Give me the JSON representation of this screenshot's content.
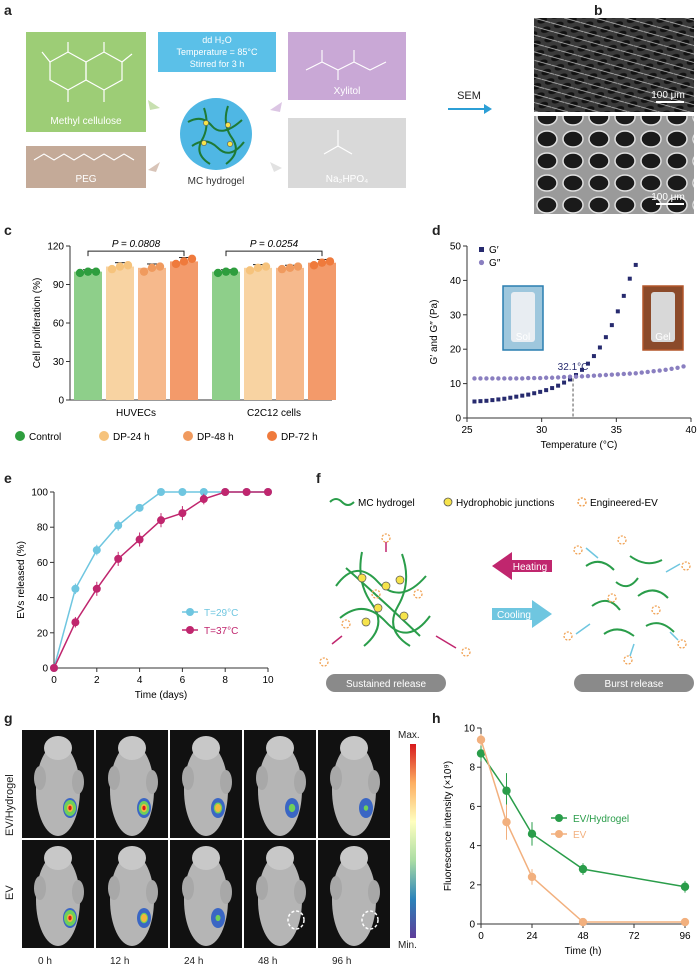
{
  "panel_labels": {
    "a": "a",
    "b": "b",
    "c": "c",
    "d": "d",
    "e": "e",
    "f": "f",
    "g": "g",
    "h": "h"
  },
  "panel_a": {
    "methyl_cellulose": "Methyl cellulose",
    "peg": "PEG",
    "xylitol": "Xylitol",
    "na2hpo4": "Na₂HPO₄",
    "center_label": "MC hydrogel",
    "conditions": [
      "dd H₂O",
      "Temperature = 85°C",
      "Stirred for 3 h"
    ],
    "colors": {
      "mc": "#9dcd76",
      "peg": "#c4aa98",
      "xylitol": "#c9a8d6",
      "na2hpo4": "#d9d9d9",
      "conditions": "#5bc0e8"
    }
  },
  "panel_b": {
    "arrow_label": "SEM",
    "scale_top": "100 μm",
    "scale_bottom": "100 μm"
  },
  "chart_c": {
    "type": "bar",
    "ylabel": "Cell proliferation (%)",
    "ylim": [
      0,
      120
    ],
    "yticks": [
      0,
      30,
      60,
      90,
      120
    ],
    "groups": [
      "HUVECs",
      "C2C12 cells"
    ],
    "series": [
      {
        "name": "Control",
        "color": "#8ecf8a",
        "dot": "#2e9e3e",
        "values": [
          100,
          100
        ],
        "errors": [
          1.5,
          1.5
        ],
        "points": [
          [
            99,
            100,
            100
          ],
          [
            99,
            100,
            100
          ]
        ]
      },
      {
        "name": "DP-24 h",
        "color": "#f8d3a2",
        "dot": "#f6c37c",
        "values": [
          104,
          103
        ],
        "errors": [
          3,
          2.5
        ],
        "points": [
          [
            102,
            104,
            105
          ],
          [
            101,
            103,
            104
          ]
        ]
      },
      {
        "name": "DP-48 h",
        "color": "#f6b98c",
        "dot": "#f09a5e",
        "values": [
          103,
          103
        ],
        "errors": [
          3,
          2
        ],
        "points": [
          [
            100,
            103,
            104
          ],
          [
            102,
            103,
            104
          ]
        ]
      },
      {
        "name": "DP-72 h",
        "color": "#f39a6a",
        "dot": "#ef7a3c",
        "values": [
          108,
          107
        ],
        "errors": [
          3,
          2.5
        ],
        "points": [
          [
            106,
            108,
            110
          ],
          [
            105,
            107,
            108
          ]
        ]
      }
    ],
    "pvalues": [
      "P = 0.0808",
      "P = 0.0254"
    ],
    "legend_dot_colors": [
      "#2e9e3e",
      "#f6c37c",
      "#f09a5e",
      "#ef7a3c"
    ]
  },
  "chart_d": {
    "type": "scatter",
    "xlabel": "Temperature (°C)",
    "ylabel": "G′ and G″ (Pa)",
    "xlim": [
      25,
      40
    ],
    "ylim": [
      0,
      50
    ],
    "xticks": [
      25,
      30,
      35,
      40
    ],
    "yticks": [
      0,
      10,
      20,
      30,
      40,
      50
    ],
    "annotation": "32.1°C",
    "annotation_x": 32.1,
    "inset_sol": "Sol",
    "inset_gel": "Gel",
    "series": [
      {
        "name": "G′",
        "color": "#262a6e",
        "x": [
          25.5,
          25.9,
          26.3,
          26.7,
          27.1,
          27.5,
          27.9,
          28.3,
          28.7,
          29.1,
          29.5,
          29.9,
          30.3,
          30.7,
          31.1,
          31.5,
          31.9,
          32.3,
          32.7,
          33.1,
          33.5,
          33.9,
          34.3,
          34.7,
          35.1,
          35.5,
          35.9,
          36.3
        ],
        "y": [
          4.8,
          4.9,
          5.0,
          5.2,
          5.4,
          5.6,
          5.9,
          6.2,
          6.5,
          6.8,
          7.2,
          7.6,
          8.1,
          8.7,
          9.4,
          10.3,
          11.2,
          12.5,
          14.0,
          15.8,
          18.0,
          20.5,
          23.5,
          27.0,
          31.0,
          35.5,
          40.5,
          44.5
        ]
      },
      {
        "name": "G″",
        "color": "#8a7fc0",
        "x": [
          25.5,
          25.9,
          26.3,
          26.7,
          27.1,
          27.5,
          27.9,
          28.3,
          28.7,
          29.1,
          29.5,
          29.9,
          30.3,
          30.7,
          31.1,
          31.5,
          31.9,
          32.3,
          32.7,
          33.1,
          33.5,
          33.9,
          34.3,
          34.7,
          35.1,
          35.5,
          35.9,
          36.3,
          36.7,
          37.1,
          37.5,
          37.9,
          38.3,
          38.7,
          39.1,
          39.5
        ],
        "y": [
          11.5,
          11.5,
          11.5,
          11.5,
          11.5,
          11.5,
          11.5,
          11.5,
          11.5,
          11.6,
          11.6,
          11.6,
          11.7,
          11.7,
          11.8,
          11.9,
          12.0,
          12.0,
          12.1,
          12.2,
          12.3,
          12.4,
          12.5,
          12.6,
          12.7,
          12.8,
          12.9,
          13.0,
          13.2,
          13.4,
          13.6,
          13.8,
          14.0,
          14.3,
          14.6,
          15.0
        ]
      }
    ]
  },
  "chart_e": {
    "type": "line",
    "xlabel": "Time (days)",
    "ylabel": "EVs released (%)",
    "xlim": [
      0,
      10
    ],
    "ylim": [
      0,
      100
    ],
    "xticks": [
      0,
      2,
      4,
      6,
      8,
      10
    ],
    "yticks": [
      0,
      20,
      40,
      60,
      80,
      100
    ],
    "series": [
      {
        "name": "T=29°C",
        "color": "#6fc6e0",
        "x": [
          0,
          1,
          2,
          3,
          4,
          5,
          6,
          7,
          8,
          9,
          10
        ],
        "y": [
          0,
          45,
          67,
          81,
          91,
          100,
          100,
          100,
          100,
          100,
          100
        ],
        "err": [
          0,
          3,
          3,
          3,
          2,
          1,
          1,
          0,
          0,
          0,
          0
        ]
      },
      {
        "name": "T=37°C",
        "color": "#c0266e",
        "x": [
          0,
          1,
          2,
          3,
          4,
          5,
          6,
          7,
          8,
          9,
          10
        ],
        "y": [
          0,
          26,
          45,
          62,
          73,
          84,
          88,
          96,
          100,
          100,
          100
        ],
        "err": [
          0,
          3,
          4,
          4,
          4,
          4,
          4,
          3,
          1,
          0,
          0
        ]
      }
    ]
  },
  "panel_f": {
    "legend": [
      "MC hydrogel",
      "Hydrophobic junctions",
      "Engineered-EV"
    ],
    "heating": "Heating",
    "cooling": "Cooling",
    "sustained": "Sustained release",
    "burst": "Burst release"
  },
  "panel_g": {
    "rows": [
      "EV/Hydrogel",
      "EV"
    ],
    "times": [
      "0 h",
      "12 h",
      "24 h",
      "48 h",
      "96 h"
    ],
    "scale_max": "Max.",
    "scale_min": "Min."
  },
  "chart_h": {
    "type": "line",
    "xlabel": "Time (h)",
    "ylabel": "Fluorescence intensity (×10⁹)",
    "xlim": [
      0,
      96
    ],
    "ylim": [
      0,
      10
    ],
    "xticks": [
      0,
      24,
      48,
      72,
      96
    ],
    "yticks": [
      0,
      2,
      4,
      6,
      8,
      10
    ],
    "series": [
      {
        "name": "EV/Hydrogel",
        "color": "#2a9d4a",
        "x": [
          0,
          12,
          24,
          48,
          96
        ],
        "y": [
          8.7,
          6.8,
          4.6,
          2.8,
          1.9
        ],
        "err": [
          0.4,
          0.9,
          0.6,
          0.3,
          0.3
        ]
      },
      {
        "name": "EV",
        "color": "#f2b07e",
        "x": [
          0,
          12,
          24,
          48,
          96
        ],
        "y": [
          9.4,
          5.2,
          2.4,
          0.1,
          0.1
        ],
        "err": [
          0.3,
          0.9,
          0.4,
          0.1,
          0.1
        ]
      }
    ]
  }
}
